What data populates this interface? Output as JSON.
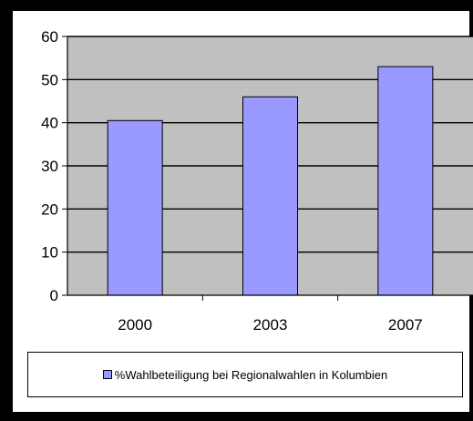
{
  "chart_data": {
    "type": "bar",
    "categories": [
      "2000",
      "2003",
      "2007"
    ],
    "series": [
      {
        "name": "%Wahlbeteiligung bei Regionalwahlen in Kolumbien",
        "values": [
          40.5,
          46,
          53
        ]
      }
    ],
    "ylim": [
      0,
      60
    ],
    "yticks": [
      0,
      10,
      20,
      30,
      40,
      50,
      60
    ],
    "grid": true,
    "legend": "bottom",
    "colors": {
      "bar": "#9999ff",
      "plot_background": "#c0c0c0",
      "gridline": "#000000"
    }
  }
}
